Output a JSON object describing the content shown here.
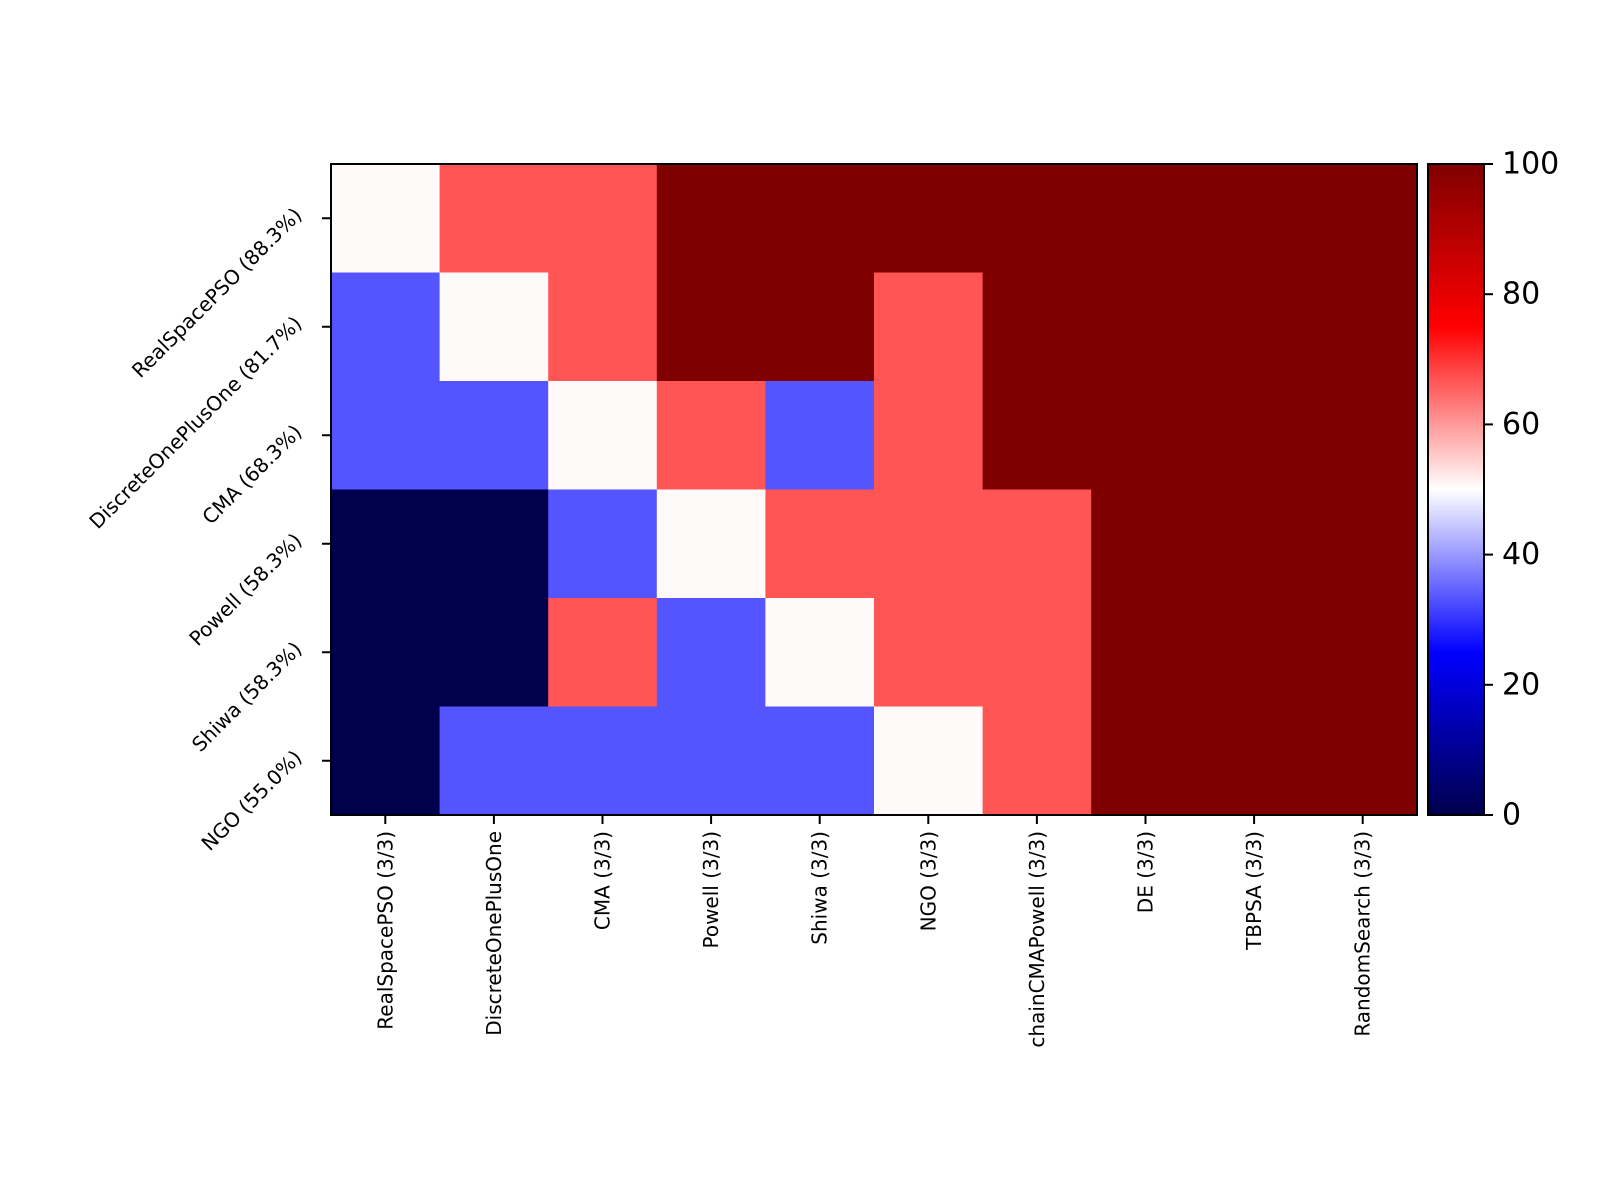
{
  "chart_data": {
    "type": "heatmap",
    "title": "",
    "xlabel": "",
    "ylabel": "",
    "x_categories": [
      "RealSpacePSO (3/3)",
      "DiscreteOnePlusOne",
      "CMA (3/3)",
      "Powell (3/3)",
      "Shiwa (3/3)",
      "NGO (3/3)",
      "chainCMAPowell (3/3)",
      "DE (3/3)",
      "TBPSA (3/3)",
      "RandomSearch (3/3)"
    ],
    "y_categories": [
      "RealSpacePSO (88.3%)",
      "DiscreteOnePlusOne (81.7%)",
      "CMA (68.3%)",
      "Powell (58.3%)",
      "Shiwa (58.3%)",
      "NGO (55.0%)"
    ],
    "values": [
      [
        50,
        66.7,
        66.7,
        100,
        100,
        100,
        100,
        100,
        100,
        100
      ],
      [
        33.3,
        50,
        66.7,
        100,
        100,
        66.7,
        100,
        100,
        100,
        100
      ],
      [
        33.3,
        33.3,
        50,
        66.7,
        33.3,
        66.7,
        100,
        100,
        100,
        100
      ],
      [
        0,
        0,
        33.3,
        50,
        66.7,
        66.7,
        66.7,
        100,
        100,
        100
      ],
      [
        0,
        0,
        66.7,
        33.3,
        50,
        66.7,
        66.7,
        100,
        100,
        100
      ],
      [
        0,
        33.3,
        33.3,
        33.3,
        33.3,
        50,
        66.7,
        100,
        100,
        100
      ]
    ],
    "colormap": "seismic",
    "colors": {
      "0": "#00004c",
      "33.3": "#5555ff",
      "50": "#fffafa",
      "66.7": "#ff5555",
      "100": "#7f0000"
    },
    "vmin": 0,
    "vmax": 100,
    "colorbar": {
      "ticks": [
        0,
        20,
        40,
        60,
        80,
        100
      ],
      "tick_labels": [
        "0",
        "20",
        "40",
        "60",
        "80",
        "100"
      ],
      "placement": "right"
    },
    "grid": false
  }
}
